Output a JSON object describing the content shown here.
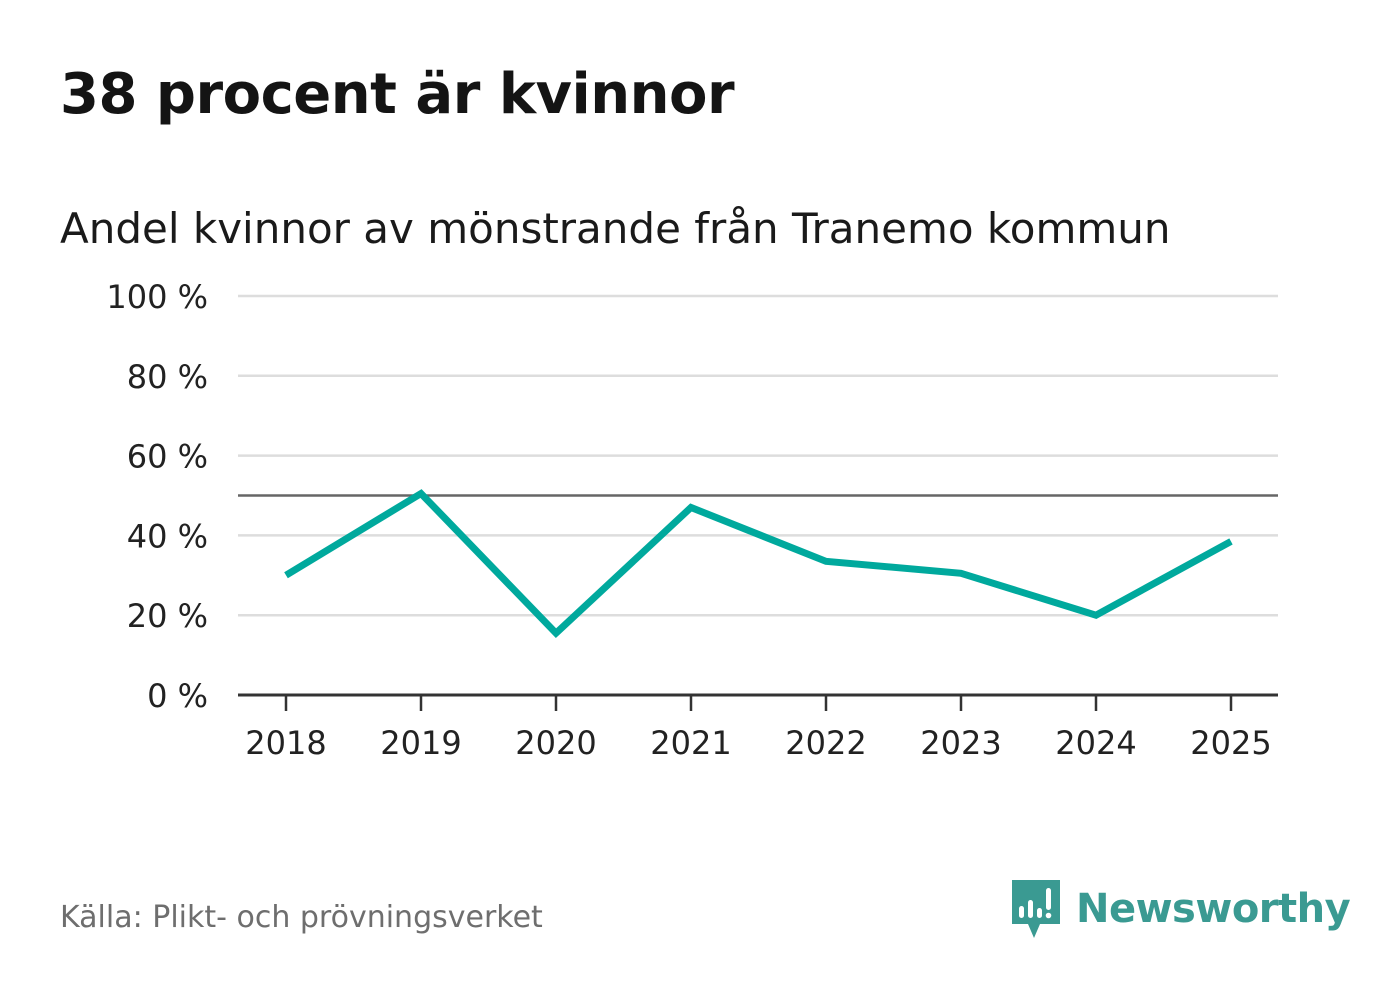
{
  "header": {
    "title": "38 procent är kvinnor",
    "subtitle": "Andel kvinnor av mönstrande från Tranemo kommun"
  },
  "footer": {
    "source": "Källa: Plikt- och prövningsverket",
    "brand": "Newsworthy",
    "brand_icon": "newsworthy-logo-icon"
  },
  "colors": {
    "series": "#00a99d",
    "grid": "#dddddd",
    "reference_line": "#666666",
    "axis": "#333333",
    "brand": "#3a9a92"
  },
  "chart_data": {
    "type": "line",
    "title": "Andel kvinnor av mönstrande från Tranemo kommun",
    "xlabel": "",
    "ylabel": "",
    "categories": [
      "2018",
      "2019",
      "2020",
      "2021",
      "2022",
      "2023",
      "2024",
      "2025"
    ],
    "series": [
      {
        "name": "Andel kvinnor",
        "values": [
          30,
          50.5,
          15.5,
          47,
          33.5,
          30.5,
          20,
          38.5
        ]
      }
    ],
    "ylim": [
      0,
      100
    ],
    "yticks": [
      0,
      20,
      40,
      60,
      80,
      100
    ],
    "ytick_labels": [
      "0 %",
      "20 %",
      "40 %",
      "60 %",
      "80 %",
      "100 %"
    ],
    "reference_line": 50,
    "grid": true,
    "legend": "none"
  }
}
